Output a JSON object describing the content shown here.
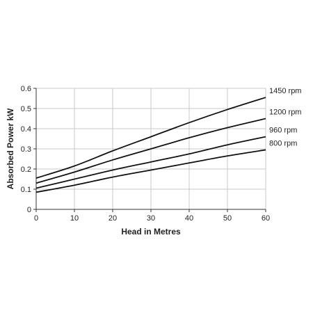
{
  "chart_data": {
    "type": "line",
    "xlabel": "Head in Metres",
    "ylabel": "Absorbed Power kW",
    "xlim": [
      0,
      60
    ],
    "ylim": [
      0,
      0.6
    ],
    "xticks": [
      "0",
      "10",
      "20",
      "30",
      "40",
      "50",
      "60"
    ],
    "yticks": [
      "0",
      "0.1",
      "0.2",
      "0.3",
      "0.4",
      "0.5",
      "0.6"
    ],
    "grid": true,
    "legend": "labels at right end of lines",
    "x": [
      0,
      10,
      20,
      30,
      40,
      50,
      60
    ],
    "series": [
      {
        "name": "1450 rpm",
        "values": [
          0.155,
          0.215,
          0.29,
          0.36,
          0.43,
          0.495,
          0.555
        ]
      },
      {
        "name": "1200 rpm",
        "values": [
          0.13,
          0.185,
          0.245,
          0.3,
          0.355,
          0.405,
          0.45
        ]
      },
      {
        "name": "960 rpm",
        "values": [
          0.105,
          0.15,
          0.195,
          0.235,
          0.275,
          0.32,
          0.36
        ]
      },
      {
        "name": "800 rpm",
        "values": [
          0.085,
          0.12,
          0.16,
          0.195,
          0.23,
          0.265,
          0.295
        ]
      }
    ]
  }
}
